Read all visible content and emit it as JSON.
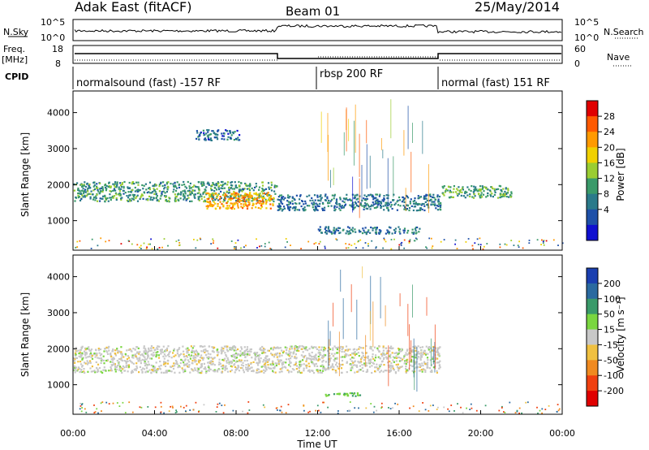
{
  "header": {
    "station": "Adak East (fitACF)",
    "beam": "Beam 01",
    "date": "25/May/2014"
  },
  "summary_panels": {
    "nsky_label": "N.Sky",
    "nsky_ticks": [
      "10^5",
      "10^0"
    ],
    "nsearch_label": "N.Search",
    "nsearch_ticks": [
      "10^5",
      "10^0"
    ],
    "freq_label": "Freq.",
    "freq_unit": "[MHz]",
    "freq_ticks": [
      "18",
      "8"
    ],
    "nave_label": "Nave",
    "nave_ticks": [
      "60",
      "0"
    ],
    "cpid_label": "CPID",
    "cpid_segments": [
      {
        "label": "normalsound (fast) -157 RF",
        "start_hour": 0,
        "end_hour": 12
      },
      {
        "label": "rbsp 200 RF",
        "start_hour": 12,
        "end_hour": 18
      },
      {
        "label": "normal (fast) 151 RF",
        "start_hour": 18,
        "end_hour": 24
      }
    ]
  },
  "chart_data": [
    {
      "type": "heatmap",
      "title": "",
      "ylabel": "Slant Range [km]",
      "xlabel": "",
      "xlim": [
        0,
        24
      ],
      "ylim": [
        180,
        4600
      ],
      "yticks": [
        1000,
        2000,
        3000,
        4000
      ],
      "colorbar": {
        "label": "Power [dB]",
        "ticks": [
          "28",
          "24",
          "20",
          "16",
          "12",
          "8",
          "4"
        ],
        "colors": [
          "#e00000",
          "#ff5a00",
          "#ff9a00",
          "#f0d000",
          "#9acd32",
          "#3a9a6a",
          "#2a7a8a",
          "#1e50a8",
          "#1010d0"
        ]
      },
      "features": [
        {
          "name": "main band",
          "start_hour": 0.0,
          "end_hour": 10.0,
          "range_km": [
            1550,
            2100
          ],
          "power_db": 10
        },
        {
          "name": "enhanced echo",
          "start_hour": 6.5,
          "end_hour": 9.8,
          "range_km": [
            1350,
            1800
          ],
          "power_db": 22
        },
        {
          "name": "upper patch",
          "start_hour": 6.0,
          "end_hour": 8.2,
          "range_km": [
            3250,
            3550
          ],
          "power_db": 6
        },
        {
          "name": "rbsp band",
          "start_hour": 10.0,
          "end_hour": 18.0,
          "range_km": [
            1300,
            1750
          ],
          "power_db": 7
        },
        {
          "name": "lower echo",
          "start_hour": 12.0,
          "end_hour": 17.0,
          "range_km": [
            650,
            850
          ],
          "power_db": 7
        },
        {
          "name": "late band",
          "start_hour": 18.0,
          "end_hour": 21.5,
          "range_km": [
            1650,
            2000
          ],
          "power_db": 12
        }
      ]
    },
    {
      "type": "heatmap",
      "title": "",
      "ylabel": "Slant Range [km]",
      "xlabel": "Time UT",
      "xlim": [
        0,
        24
      ],
      "ylim": [
        180,
        4600
      ],
      "yticks": [
        1000,
        2000,
        3000,
        4000
      ],
      "xticks": [
        "00:00",
        "04:00",
        "08:00",
        "12:00",
        "16:00",
        "20:00",
        "00:00"
      ],
      "colorbar": {
        "label": "Velocity [m s⁻¹]",
        "ticks": [
          "200",
          "100",
          "50",
          "15",
          "-15",
          "-50",
          "-100",
          "-200"
        ],
        "colors": [
          "#1a3fb0",
          "#2a6aa0",
          "#3a9a6a",
          "#7ad640",
          "#c8c8c8",
          "#f0c040",
          "#f08a20",
          "#f04010",
          "#e00000"
        ]
      },
      "features": [
        {
          "name": "ground scatter band",
          "start_hour": 0.0,
          "end_hour": 18.0,
          "range_km": [
            1350,
            2100
          ],
          "velocity": 0
        },
        {
          "name": "lower green echo",
          "start_hour": 12.3,
          "end_hour": 14.2,
          "range_km": [
            680,
            800
          ],
          "velocity": 30
        }
      ]
    }
  ]
}
